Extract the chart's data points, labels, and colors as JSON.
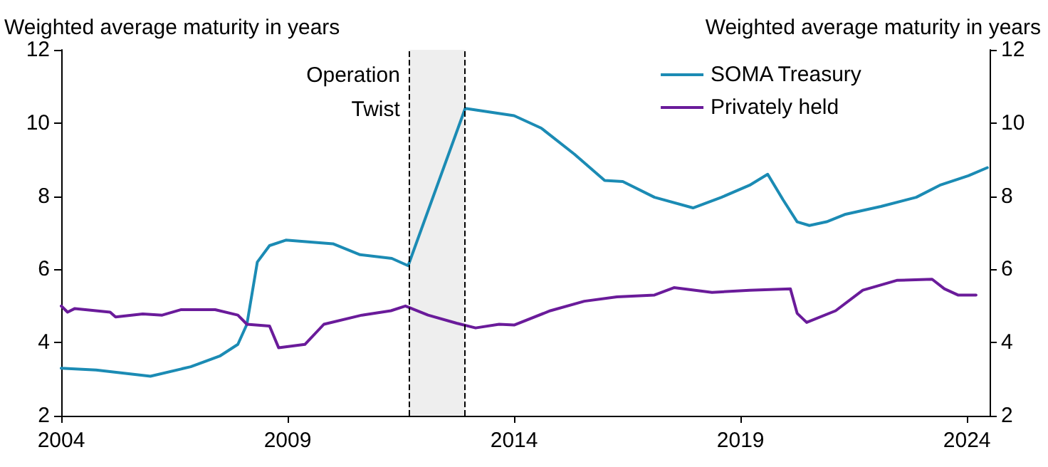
{
  "chart_data": {
    "type": "line",
    "ylabel": "Weighted average maturity in years",
    "y2label": "Weighted average maturity in years",
    "xlim": [
      2004,
      2024.5
    ],
    "xticks": [
      2004,
      2009,
      2014,
      2019,
      2024
    ],
    "ylim": [
      2,
      12
    ],
    "yticks": [
      2,
      4,
      6,
      8,
      10,
      12
    ],
    "y2lim": [
      2,
      12
    ],
    "y2ticks": [
      2,
      4,
      6,
      8,
      10,
      12
    ],
    "grid": false,
    "legend": "top right",
    "marker": "none",
    "line_style": "solid",
    "bands": [
      {
        "axis": "x",
        "from": 2011.67,
        "to": 2012.92,
        "label": "Operation Twist",
        "color": "#eeeeee"
      }
    ],
    "ref_lines": [
      {
        "axis": "x",
        "value": 2011.67,
        "color": "#000000",
        "line_style": "dashed"
      },
      {
        "axis": "x",
        "value": 2012.92,
        "color": "#000000",
        "line_style": "dashed"
      }
    ],
    "series": [
      {
        "name": "SOMA Treasury",
        "color": "#1b8bb4",
        "x": [
          2004.0,
          2004.77,
          2005.97,
          2006.86,
          2007.5,
          2007.9,
          2008.1,
          2008.33,
          2008.6,
          2008.96,
          2010.0,
          2010.6,
          2011.3,
          2011.66,
          2012.92,
          2014.0,
          2014.6,
          2015.33,
          2016.0,
          2016.4,
          2017.1,
          2017.95,
          2018.58,
          2019.2,
          2019.6,
          2019.94,
          2020.25,
          2020.52,
          2020.9,
          2021.3,
          2022.1,
          2022.88,
          2023.4,
          2024.03,
          2024.45
        ],
        "values": [
          3.3,
          3.25,
          3.08,
          3.34,
          3.63,
          3.95,
          4.5,
          6.2,
          6.65,
          6.8,
          6.7,
          6.4,
          6.3,
          6.1,
          10.4,
          10.2,
          9.86,
          9.15,
          8.43,
          8.4,
          7.97,
          7.68,
          7.97,
          8.3,
          8.6,
          7.9,
          7.3,
          7.2,
          7.3,
          7.5,
          7.72,
          7.97,
          8.3,
          8.56,
          8.78
        ]
      },
      {
        "name": "Privately held",
        "color": "#6a1b9a",
        "x": [
          2004.0,
          2004.14,
          2004.3,
          2005.08,
          2005.2,
          2005.8,
          2006.23,
          2006.65,
          2007.4,
          2007.9,
          2008.1,
          2008.6,
          2008.8,
          2009.38,
          2009.8,
          2010.64,
          2011.28,
          2011.6,
          2012.1,
          2012.73,
          2013.15,
          2013.67,
          2014.0,
          2014.8,
          2015.55,
          2016.27,
          2017.1,
          2017.53,
          2018.37,
          2019.2,
          2020.1,
          2020.25,
          2020.46,
          2021.1,
          2021.7,
          2022.45,
          2023.23,
          2023.5,
          2023.8,
          2024.2
        ],
        "values": [
          5.0,
          4.83,
          4.93,
          4.83,
          4.7,
          4.78,
          4.75,
          4.9,
          4.9,
          4.75,
          4.5,
          4.45,
          3.86,
          3.95,
          4.5,
          4.75,
          4.87,
          5.0,
          4.75,
          4.53,
          4.4,
          4.5,
          4.48,
          4.87,
          5.13,
          5.25,
          5.3,
          5.5,
          5.37,
          5.43,
          5.47,
          4.8,
          4.55,
          4.87,
          5.43,
          5.7,
          5.73,
          5.47,
          5.3,
          5.3
        ]
      }
    ]
  }
}
